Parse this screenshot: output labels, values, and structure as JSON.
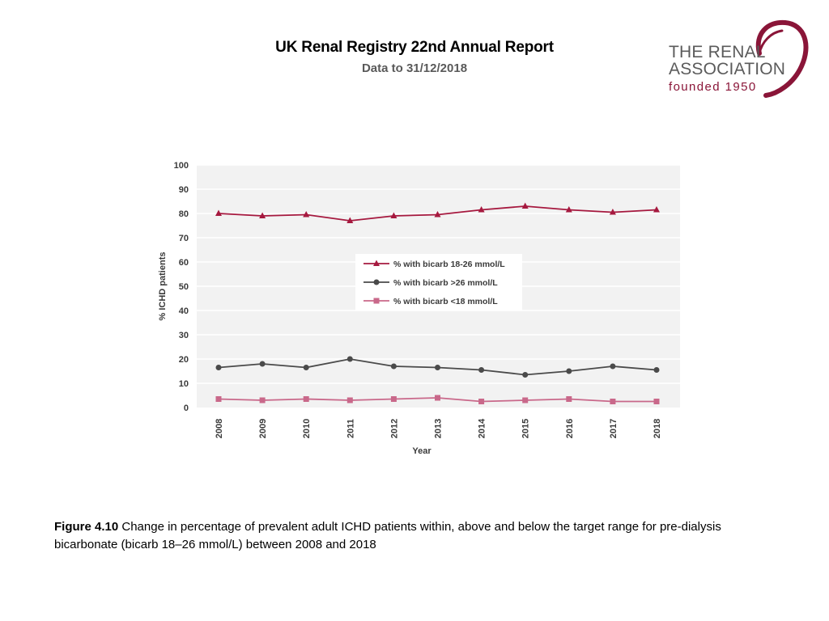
{
  "header": {
    "title": "UK Renal Registry 22nd Annual Report",
    "subtitle": "Data to 31/12/2018"
  },
  "logo": {
    "line1": "THE RENAL",
    "line2": "ASSOCIATION",
    "line3": "founded 1950",
    "brand_color": "#8a1538"
  },
  "chart_data": {
    "type": "line",
    "title": "",
    "xlabel": "Year",
    "ylabel": "% ICHD patients",
    "ylim": [
      0,
      100
    ],
    "yticks": [
      0,
      10,
      20,
      30,
      40,
      50,
      60,
      70,
      80,
      90,
      100
    ],
    "categories": [
      "2008",
      "2009",
      "2010",
      "2011",
      "2012",
      "2013",
      "2014",
      "2015",
      "2016",
      "2017",
      "2018"
    ],
    "legend_position": "center",
    "series": [
      {
        "name": "% with bicarb 18-26 mmol/L",
        "color": "#a6193f",
        "marker": "triangle",
        "values": [
          80,
          79,
          79.5,
          77,
          79,
          79.5,
          81.5,
          83,
          81.5,
          80.5,
          81.5
        ]
      },
      {
        "name": "% with bicarb >26 mmol/L",
        "color": "#4a4a4a",
        "marker": "circle",
        "values": [
          16.5,
          18,
          16.5,
          20,
          17,
          16.5,
          15.5,
          13.5,
          15,
          17,
          15.5
        ]
      },
      {
        "name": "% with bicarb <18 mmol/L",
        "color": "#c9688a",
        "marker": "square",
        "values": [
          3.5,
          3,
          3.5,
          3,
          3.5,
          4,
          2.5,
          3,
          3.5,
          2.5,
          2.5
        ]
      }
    ]
  },
  "caption": {
    "label": "Figure 4.10",
    "text": " Change in percentage of prevalent adult ICHD patients within, above and below the target range for pre-dialysis bicarbonate (bicarb 18–26 mmol/L) between 2008 and 2018"
  }
}
